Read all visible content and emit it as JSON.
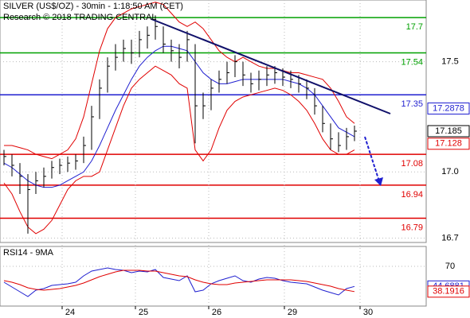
{
  "chart_data": {
    "type": "ohlc",
    "title": "SILVER (US$/OZ) - 30min - 1:18:50 AM (CET)",
    "subtitle": "Research © 2018 TRADING CENTRAL",
    "xlim": [
      -0.5,
      53
    ],
    "xticks": [
      {
        "value": 7.3,
        "label": "24"
      },
      {
        "value": 16.5,
        "label": "25"
      },
      {
        "value": 25.7,
        "label": "26"
      },
      {
        "value": 35.2,
        "label": "29"
      },
      {
        "value": 44.7,
        "label": "30"
      }
    ],
    "ylim": [
      16.68,
      17.78
    ],
    "yticks": [
      17.5,
      {
        "value": 17,
        "label": "17.0"
      },
      16.7
    ],
    "close": [
      17.07,
      17.03,
      16.98,
      16.92,
      16.96,
      16.98,
      17.02,
      17.03,
      17.04,
      17.05,
      17.12,
      17.25,
      17.38,
      17.48,
      17.52,
      17.56,
      17.54,
      17.6,
      17.62,
      17.66,
      17.58,
      17.55,
      17.52,
      17.6,
      17.3,
      17.3,
      17.38,
      17.42,
      17.45,
      17.5,
      17.44,
      17.4,
      17.42,
      17.44,
      17.45,
      17.43,
      17.42,
      17.4,
      17.38,
      17.3,
      17.22,
      17.15,
      17.12,
      17.16,
      17.185
    ],
    "high": [
      17.1,
      17.08,
      17.04,
      16.99,
      17.0,
      17.02,
      17.05,
      17.06,
      17.07,
      17.08,
      17.16,
      17.3,
      17.42,
      17.52,
      17.58,
      17.6,
      17.6,
      17.64,
      17.66,
      17.71,
      17.66,
      17.6,
      17.58,
      17.64,
      17.58,
      17.36,
      17.42,
      17.46,
      17.5,
      17.53,
      17.5,
      17.45,
      17.46,
      17.48,
      17.48,
      17.47,
      17.46,
      17.44,
      17.42,
      17.38,
      17.3,
      17.22,
      17.18,
      17.2,
      17.21
    ],
    "low": [
      17.03,
      16.98,
      16.9,
      16.72,
      16.9,
      16.93,
      16.97,
      16.99,
      17.0,
      17.01,
      17.04,
      17.1,
      17.24,
      17.36,
      17.46,
      17.5,
      17.49,
      17.52,
      17.56,
      17.6,
      17.54,
      17.5,
      17.47,
      17.5,
      17.13,
      17.24,
      17.28,
      17.36,
      17.4,
      17.43,
      17.39,
      17.36,
      17.37,
      17.39,
      17.4,
      17.39,
      17.38,
      17.36,
      17.33,
      17.26,
      17.18,
      17.1,
      17.09,
      17.1,
      17.14
    ],
    "bands": [
      {
        "name": "upper",
        "color": "#e00000",
        "values": [
          17.12,
          17.12,
          17.11,
          17.1,
          17.08,
          17.07,
          17.06,
          17.08,
          17.1,
          17.15,
          17.25,
          17.4,
          17.55,
          17.65,
          17.7,
          17.72,
          17.74,
          17.75,
          17.76,
          17.77,
          17.76,
          17.72,
          17.68,
          17.66,
          17.68,
          17.65,
          17.6,
          17.55,
          17.52,
          17.5,
          17.52,
          17.5,
          17.48,
          17.47,
          17.47,
          17.46,
          17.45,
          17.45,
          17.44,
          17.43,
          17.42,
          17.38,
          17.32,
          17.25,
          17.22
        ]
      },
      {
        "name": "ma",
        "color": "#1f1fd0",
        "values": [
          17.04,
          17.02,
          16.99,
          16.96,
          16.94,
          16.93,
          16.93,
          16.94,
          16.96,
          16.98,
          17.0,
          17.05,
          17.12,
          17.2,
          17.28,
          17.35,
          17.42,
          17.48,
          17.52,
          17.55,
          17.57,
          17.57,
          17.56,
          17.55,
          17.5,
          17.45,
          17.42,
          17.4,
          17.4,
          17.41,
          17.42,
          17.42,
          17.42,
          17.42,
          17.42,
          17.42,
          17.41,
          17.4,
          17.38,
          17.35,
          17.3,
          17.25,
          17.2,
          17.18,
          17.16
        ]
      },
      {
        "name": "lower",
        "color": "#e00000",
        "values": [
          16.95,
          16.9,
          16.82,
          16.75,
          16.72,
          16.74,
          16.78,
          16.85,
          16.92,
          16.96,
          16.98,
          16.98,
          17.0,
          17.1,
          17.2,
          17.3,
          17.38,
          17.42,
          17.45,
          17.48,
          17.46,
          17.44,
          17.4,
          17.38,
          17.1,
          17.05,
          17.1,
          17.2,
          17.28,
          17.32,
          17.34,
          17.35,
          17.36,
          17.37,
          17.38,
          17.37,
          17.35,
          17.32,
          17.28,
          17.22,
          17.15,
          17.1,
          17.08,
          17.08,
          17.1
        ]
      }
    ],
    "levels": [
      {
        "value": 17.7,
        "color": "#00a000"
      },
      {
        "value": 17.54,
        "color": "#00a000"
      },
      {
        "value": 17.35,
        "color": "#1f1fd0"
      },
      {
        "value": 17.08,
        "color": "#e00000"
      },
      {
        "value": 16.94,
        "color": "#e00000"
      },
      {
        "value": 16.79,
        "color": "#e00000"
      }
    ],
    "tags": [
      {
        "value": 17.2878,
        "color": "#1f1fd0"
      },
      {
        "value": 17.185,
        "color": "#000000"
      },
      {
        "value": 17.128,
        "color": "#e00000"
      }
    ],
    "rsi": {
      "label": "RSI14 - 9MA",
      "ylim": [
        20,
        95
      ],
      "yticks": [
        70
      ],
      "series": [
        {
          "name": "RSI14",
          "color": "#1f1fd0",
          "values": [
            50,
            44,
            38,
            32,
            40,
            42,
            46,
            47,
            48,
            50,
            58,
            64,
            66,
            68,
            66,
            65,
            62,
            64,
            63,
            66,
            56,
            54,
            52,
            58,
            38,
            40,
            48,
            52,
            55,
            58,
            52,
            50,
            54,
            56,
            55,
            52,
            50,
            49,
            48,
            44,
            40,
            37,
            34,
            42,
            44.6881
          ]
        },
        {
          "name": "9MA",
          "color": "#e00000",
          "values": [
            52,
            50,
            47,
            43,
            41,
            40,
            41,
            42,
            44,
            46,
            49,
            53,
            57,
            60,
            63,
            65,
            65,
            65,
            64,
            64,
            62,
            60,
            58,
            57,
            53,
            50,
            48,
            47,
            47,
            49,
            50,
            51,
            52,
            53,
            53,
            53,
            53,
            52,
            51,
            49,
            47,
            45,
            42,
            40,
            38.1916
          ]
        }
      ]
    }
  }
}
